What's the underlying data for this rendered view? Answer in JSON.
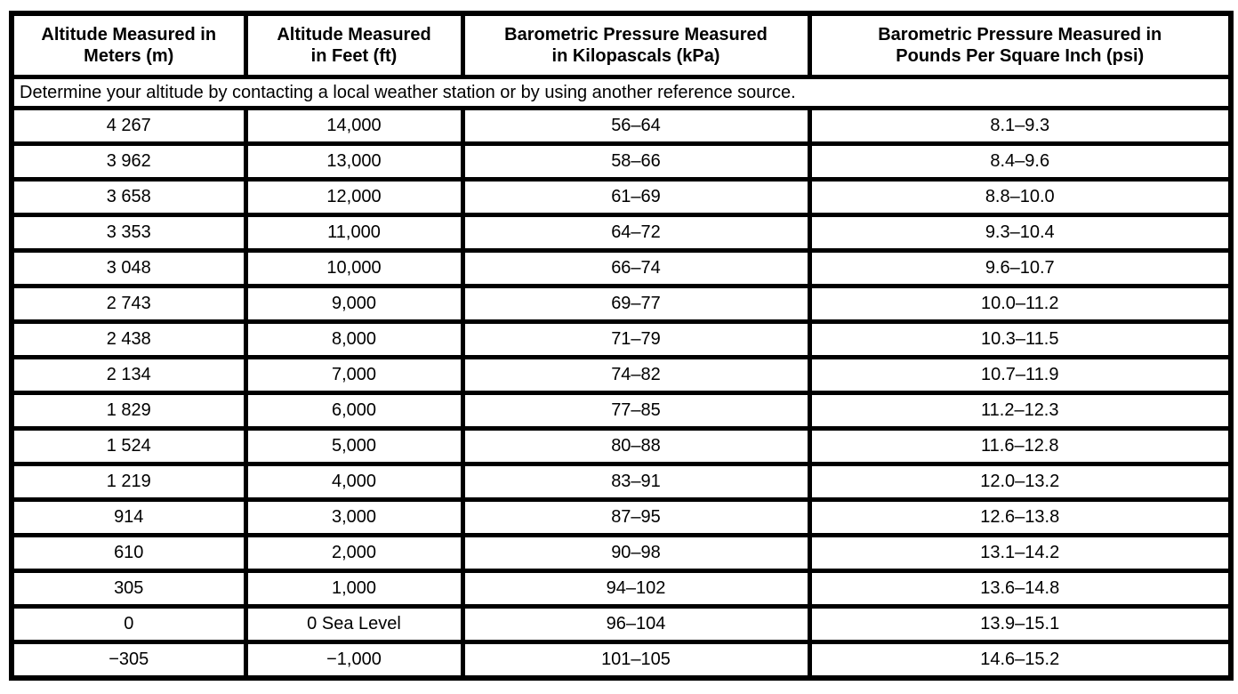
{
  "table": {
    "headers": [
      {
        "line1": "Altitude Measured in",
        "line2": "Meters (m)"
      },
      {
        "line1": "Altitude Measured",
        "line2": "in Feet (ft)"
      },
      {
        "line1": "Barometric Pressure Measured",
        "line2": "in Kilopascals (kPa)"
      },
      {
        "line1": "Barometric Pressure Measured in",
        "line2": "Pounds Per Square Inch (psi)"
      }
    ],
    "note": "Determine your altitude by contacting a local weather station or by using another reference source.",
    "rows": [
      [
        "4 267",
        "14,000",
        "56–64",
        "8.1–9.3"
      ],
      [
        "3 962",
        "13,000",
        "58–66",
        "8.4–9.6"
      ],
      [
        "3 658",
        "12,000",
        "61–69",
        "8.8–10.0"
      ],
      [
        "3 353",
        "11,000",
        "64–72",
        "9.3–10.4"
      ],
      [
        "3 048",
        "10,000",
        "66–74",
        "9.6–10.7"
      ],
      [
        "2 743",
        "9,000",
        "69–77",
        "10.0–11.2"
      ],
      [
        "2 438",
        "8,000",
        "71–79",
        "10.3–11.5"
      ],
      [
        "2 134",
        "7,000",
        "74–82",
        "10.7–11.9"
      ],
      [
        "1 829",
        "6,000",
        "77–85",
        "11.2–12.3"
      ],
      [
        "1 524",
        "5,000",
        "80–88",
        "11.6–12.8"
      ],
      [
        "1 219",
        "4,000",
        "83–91",
        "12.0–13.2"
      ],
      [
        "914",
        "3,000",
        "87–95",
        "12.6–13.8"
      ],
      [
        "610",
        "2,000",
        "90–98",
        "13.1–14.2"
      ],
      [
        "305",
        "1,000",
        "94–102",
        "13.6–14.8"
      ],
      [
        "0",
        "0 Sea Level",
        "96–104",
        "13.9–15.1"
      ],
      [
        "−305",
        "−1,000",
        "101–105",
        "14.6–15.2"
      ]
    ]
  },
  "colors": {
    "border": "#000000",
    "background": "#ffffff",
    "text": "#000000"
  }
}
